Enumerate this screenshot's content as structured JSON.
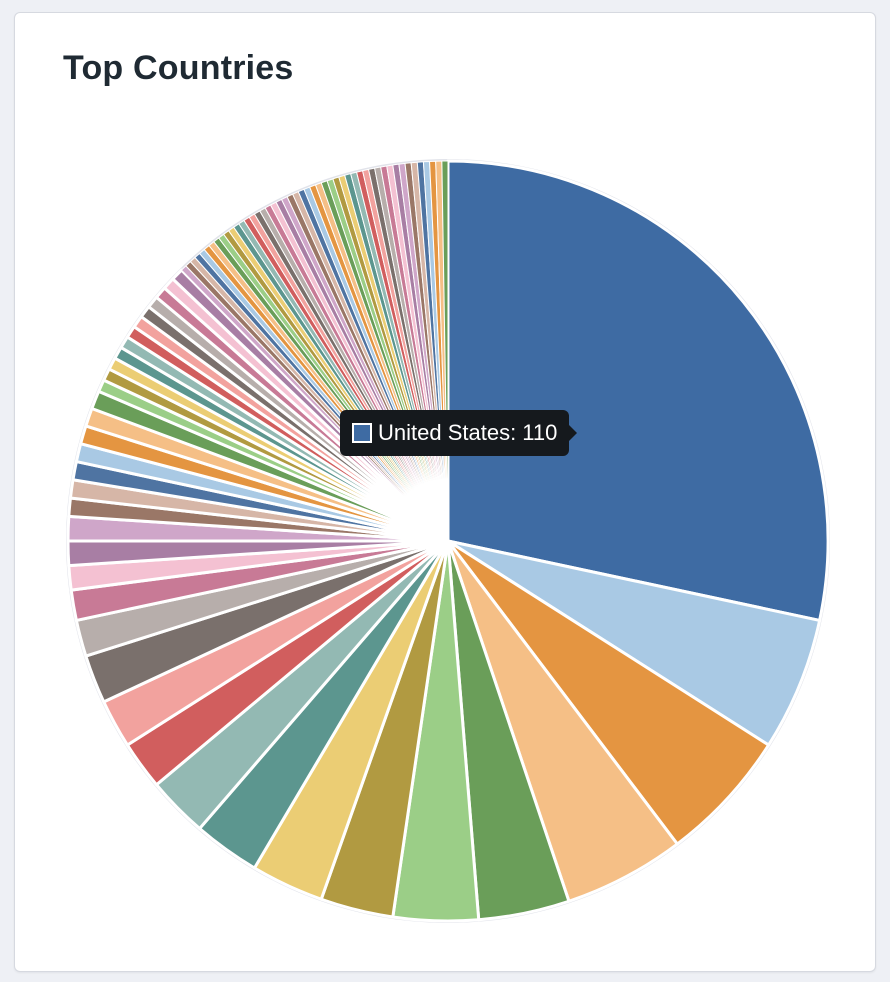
{
  "card": {
    "title": "Top Countries"
  },
  "tooltip": {
    "label": "United States",
    "value": 110,
    "text": "United States: 110",
    "color": "#3e6ba3"
  },
  "chart_data": {
    "type": "pie",
    "title": "Top Countries",
    "highlight_index": 0,
    "slices": [
      {
        "name": "United States",
        "value": 110,
        "color": "#3e6ba3"
      },
      {
        "name": "",
        "value": 22,
        "color": "#a9c9e4"
      },
      {
        "name": "",
        "value": 22,
        "color": "#e49541"
      },
      {
        "name": "",
        "value": 20,
        "color": "#f5bf86"
      },
      {
        "name": "",
        "value": 15,
        "color": "#6a9e59"
      },
      {
        "name": "",
        "value": 14,
        "color": "#9bce87"
      },
      {
        "name": "",
        "value": 12,
        "color": "#b19a41"
      },
      {
        "name": "",
        "value": 12,
        "color": "#ebcd74"
      },
      {
        "name": "",
        "value": 11,
        "color": "#5c968f"
      },
      {
        "name": "",
        "value": 10,
        "color": "#93b9b3"
      },
      {
        "name": "",
        "value": 8,
        "color": "#d15e5e"
      },
      {
        "name": "",
        "value": 8,
        "color": "#f2a29e"
      },
      {
        "name": "",
        "value": 8,
        "color": "#7a706c"
      },
      {
        "name": "",
        "value": 6,
        "color": "#b7aeab"
      },
      {
        "name": "",
        "value": 5,
        "color": "#c87a96"
      },
      {
        "name": "",
        "value": 4,
        "color": "#f4c1d2"
      },
      {
        "name": "",
        "value": 4,
        "color": "#a87ea4"
      },
      {
        "name": "",
        "value": 4,
        "color": "#cfa6c9"
      },
      {
        "name": "",
        "value": 3,
        "color": "#9a7767"
      },
      {
        "name": "",
        "value": 3,
        "color": "#d6b6a7"
      },
      {
        "name": "",
        "value": 3,
        "color": "#4f74a2"
      },
      {
        "name": "",
        "value": 3,
        "color": "#a9c9e4"
      },
      {
        "name": "",
        "value": 3,
        "color": "#e49541"
      },
      {
        "name": "",
        "value": 3,
        "color": "#f5bf86"
      },
      {
        "name": "",
        "value": 3,
        "color": "#6a9e59"
      },
      {
        "name": "",
        "value": 2,
        "color": "#9bce87"
      },
      {
        "name": "",
        "value": 2,
        "color": "#b19a41"
      },
      {
        "name": "",
        "value": 2,
        "color": "#ebcd74"
      },
      {
        "name": "",
        "value": 2,
        "color": "#5c968f"
      },
      {
        "name": "",
        "value": 2,
        "color": "#93b9b3"
      },
      {
        "name": "",
        "value": 2,
        "color": "#d15e5e"
      },
      {
        "name": "",
        "value": 2,
        "color": "#f2a29e"
      },
      {
        "name": "",
        "value": 2,
        "color": "#7a706c"
      },
      {
        "name": "",
        "value": 2,
        "color": "#b7aeab"
      },
      {
        "name": "",
        "value": 2,
        "color": "#c87a96"
      },
      {
        "name": "",
        "value": 2,
        "color": "#f4c1d2"
      },
      {
        "name": "",
        "value": 2,
        "color": "#a87ea4"
      },
      {
        "name": "",
        "value": 1,
        "color": "#cfa6c9"
      },
      {
        "name": "",
        "value": 1,
        "color": "#9a7767"
      },
      {
        "name": "",
        "value": 1,
        "color": "#d6b6a7"
      },
      {
        "name": "",
        "value": 1,
        "color": "#4f74a2"
      },
      {
        "name": "",
        "value": 1,
        "color": "#a9c9e4"
      },
      {
        "name": "",
        "value": 1,
        "color": "#e49541"
      },
      {
        "name": "",
        "value": 1,
        "color": "#f5bf86"
      },
      {
        "name": "",
        "value": 1,
        "color": "#6a9e59"
      },
      {
        "name": "",
        "value": 1,
        "color": "#9bce87"
      },
      {
        "name": "",
        "value": 1,
        "color": "#b19a41"
      },
      {
        "name": "",
        "value": 1,
        "color": "#ebcd74"
      },
      {
        "name": "",
        "value": 1,
        "color": "#5c968f"
      },
      {
        "name": "",
        "value": 1,
        "color": "#93b9b3"
      },
      {
        "name": "",
        "value": 1,
        "color": "#d15e5e"
      },
      {
        "name": "",
        "value": 1,
        "color": "#f2a29e"
      },
      {
        "name": "",
        "value": 1,
        "color": "#7a706c"
      },
      {
        "name": "",
        "value": 1,
        "color": "#b7aeab"
      },
      {
        "name": "",
        "value": 1,
        "color": "#c87a96"
      },
      {
        "name": "",
        "value": 1,
        "color": "#f4c1d2"
      },
      {
        "name": "",
        "value": 1,
        "color": "#a87ea4"
      },
      {
        "name": "",
        "value": 1,
        "color": "#cfa6c9"
      },
      {
        "name": "",
        "value": 1,
        "color": "#9a7767"
      },
      {
        "name": "",
        "value": 1,
        "color": "#d6b6a7"
      },
      {
        "name": "",
        "value": 1,
        "color": "#4f74a2"
      },
      {
        "name": "",
        "value": 1,
        "color": "#a9c9e4"
      },
      {
        "name": "",
        "value": 1,
        "color": "#e49541"
      },
      {
        "name": "",
        "value": 1,
        "color": "#f5bf86"
      },
      {
        "name": "",
        "value": 1,
        "color": "#6a9e59"
      },
      {
        "name": "",
        "value": 1,
        "color": "#9bce87"
      },
      {
        "name": "",
        "value": 1,
        "color": "#b19a41"
      },
      {
        "name": "",
        "value": 1,
        "color": "#ebcd74"
      },
      {
        "name": "",
        "value": 1,
        "color": "#5c968f"
      },
      {
        "name": "",
        "value": 1,
        "color": "#93b9b3"
      },
      {
        "name": "",
        "value": 1,
        "color": "#d15e5e"
      },
      {
        "name": "",
        "value": 1,
        "color": "#f2a29e"
      },
      {
        "name": "",
        "value": 1,
        "color": "#7a706c"
      },
      {
        "name": "",
        "value": 1,
        "color": "#b7aeab"
      },
      {
        "name": "",
        "value": 1,
        "color": "#c87a96"
      },
      {
        "name": "",
        "value": 1,
        "color": "#f4c1d2"
      },
      {
        "name": "",
        "value": 1,
        "color": "#a87ea4"
      },
      {
        "name": "",
        "value": 1,
        "color": "#cfa6c9"
      },
      {
        "name": "",
        "value": 1,
        "color": "#9a7767"
      },
      {
        "name": "",
        "value": 1,
        "color": "#d6b6a7"
      },
      {
        "name": "",
        "value": 1,
        "color": "#4f74a2"
      },
      {
        "name": "",
        "value": 1,
        "color": "#a9c9e4"
      },
      {
        "name": "",
        "value": 1,
        "color": "#e49541"
      },
      {
        "name": "",
        "value": 1,
        "color": "#f5bf86"
      },
      {
        "name": "",
        "value": 1,
        "color": "#6a9e59"
      }
    ]
  }
}
